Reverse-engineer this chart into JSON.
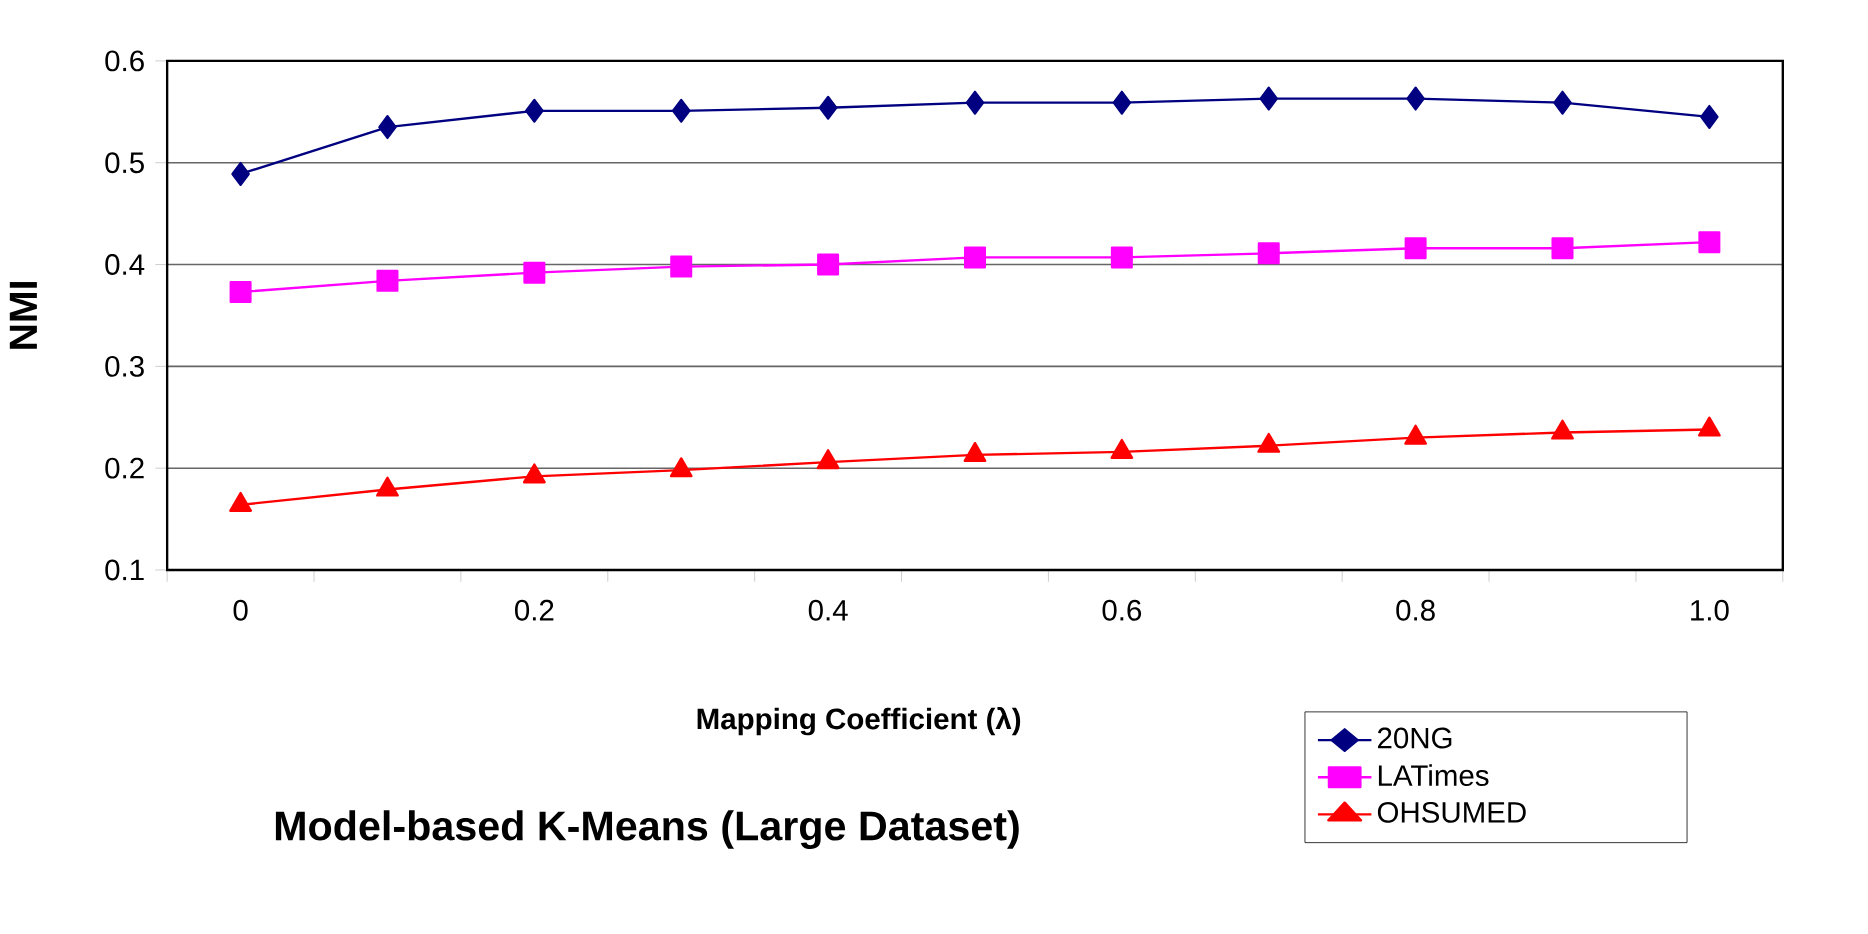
{
  "chart_data": {
    "type": "line",
    "title": "Model-based K-Means (Large Dataset)",
    "xlabel": "Mapping Coefficient (λ)",
    "ylabel": "NMI",
    "categories": [
      "0",
      null,
      "0.2",
      null,
      "0.4",
      null,
      "0.6",
      null,
      "0.8",
      null,
      "1.0"
    ],
    "ylim": [
      0.1,
      0.6
    ],
    "yticks": [
      0.1,
      0.2,
      0.3,
      0.4,
      0.5,
      0.6
    ],
    "grid": "y",
    "legend": "bottom right",
    "series": [
      {
        "name": "20NG",
        "color": "#000080",
        "marker": "diamond",
        "values": [
          0.489,
          0.535,
          0.551,
          0.551,
          0.554,
          0.559,
          0.559,
          0.563,
          0.563,
          0.559,
          0.545
        ]
      },
      {
        "name": "LATimes",
        "color": "#ff00ff",
        "marker": "square",
        "values": [
          0.373,
          0.384,
          0.392,
          0.398,
          0.4,
          0.407,
          0.407,
          0.411,
          0.416,
          0.416,
          0.422
        ]
      },
      {
        "name": "OHSUMED",
        "color": "#ff0000",
        "marker": "triangle",
        "values": [
          0.164,
          0.179,
          0.192,
          0.198,
          0.206,
          0.213,
          0.216,
          0.222,
          0.23,
          0.235,
          0.238
        ]
      }
    ]
  }
}
